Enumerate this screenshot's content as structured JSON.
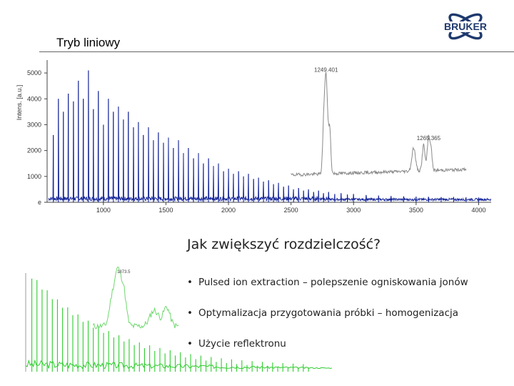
{
  "slide": {
    "title": "Tryb liniowy",
    "question": "Jak zwiększyć rozdzielczość?",
    "bullets": [
      "Pulsed ion extraction – polepszenie ogniskowania jonów",
      "Optymalizacja przygotowania próbki – homogenizacja",
      "Użycie reflektronu"
    ],
    "bullet_symbol": "•"
  },
  "logo": {
    "text": "BRUKER",
    "icon": "atom-orbit-icon",
    "color": "#1f3a6e"
  },
  "chart_data": [
    {
      "type": "line",
      "title": "",
      "xlabel": "",
      "ylabel": "Intens. [a.u.]",
      "xlim": [
        550,
        4100
      ],
      "ylim": [
        0,
        5500
      ],
      "x_ticks": [
        1000,
        1500,
        2000,
        2500,
        3000,
        3500,
        4000
      ],
      "y_ticks": [
        0,
        1000,
        2000,
        3000,
        4000,
        5000
      ],
      "y_tick_labels": [
        "0",
        "1000",
        "2000",
        "3000",
        "4000",
        "5000"
      ],
      "y_first_label": "e",
      "grid": false,
      "series": [
        {
          "color": "#1a2a9c",
          "style": "spectrum",
          "x_range": [
            560,
            4100
          ],
          "peaks": [
            {
              "x": 600,
              "y": 2600
            },
            {
              "x": 640,
              "y": 4000
            },
            {
              "x": 680,
              "y": 3500
            },
            {
              "x": 720,
              "y": 4200
            },
            {
              "x": 760,
              "y": 3900
            },
            {
              "x": 800,
              "y": 4700
            },
            {
              "x": 840,
              "y": 4000
            },
            {
              "x": 880,
              "y": 5100
            },
            {
              "x": 920,
              "y": 3600
            },
            {
              "x": 960,
              "y": 4300
            },
            {
              "x": 1000,
              "y": 3000
            },
            {
              "x": 1040,
              "y": 4000
            },
            {
              "x": 1080,
              "y": 3500
            },
            {
              "x": 1120,
              "y": 3700
            },
            {
              "x": 1160,
              "y": 3200
            },
            {
              "x": 1200,
              "y": 3500
            },
            {
              "x": 1240,
              "y": 2900
            },
            {
              "x": 1280,
              "y": 3100
            },
            {
              "x": 1320,
              "y": 2600
            },
            {
              "x": 1360,
              "y": 2900
            },
            {
              "x": 1400,
              "y": 2400
            },
            {
              "x": 1440,
              "y": 2700
            },
            {
              "x": 1480,
              "y": 2300
            },
            {
              "x": 1520,
              "y": 2500
            },
            {
              "x": 1560,
              "y": 2100
            },
            {
              "x": 1600,
              "y": 2400
            },
            {
              "x": 1640,
              "y": 1900
            },
            {
              "x": 1680,
              "y": 2100
            },
            {
              "x": 1720,
              "y": 1700
            },
            {
              "x": 1760,
              "y": 1900
            },
            {
              "x": 1800,
              "y": 1500
            },
            {
              "x": 1840,
              "y": 1700
            },
            {
              "x": 1880,
              "y": 1400
            },
            {
              "x": 1920,
              "y": 1500
            },
            {
              "x": 1960,
              "y": 1200
            },
            {
              "x": 2000,
              "y": 1300
            },
            {
              "x": 2040,
              "y": 1100
            },
            {
              "x": 2080,
              "y": 1200
            },
            {
              "x": 2120,
              "y": 1000
            },
            {
              "x": 2160,
              "y": 1100
            },
            {
              "x": 2200,
              "y": 900
            },
            {
              "x": 2240,
              "y": 950
            },
            {
              "x": 2280,
              "y": 800
            },
            {
              "x": 2320,
              "y": 850
            },
            {
              "x": 2360,
              "y": 700
            },
            {
              "x": 2400,
              "y": 750
            },
            {
              "x": 2440,
              "y": 600
            },
            {
              "x": 2480,
              "y": 650
            },
            {
              "x": 2520,
              "y": 500
            },
            {
              "x": 2560,
              "y": 550
            },
            {
              "x": 2600,
              "y": 450
            },
            {
              "x": 2640,
              "y": 500
            },
            {
              "x": 2680,
              "y": 400
            },
            {
              "x": 2720,
              "y": 450
            },
            {
              "x": 2760,
              "y": 350
            },
            {
              "x": 2800,
              "y": 400
            },
            {
              "x": 2850,
              "y": 320
            },
            {
              "x": 2900,
              "y": 350
            },
            {
              "x": 2950,
              "y": 300
            },
            {
              "x": 3000,
              "y": 320
            },
            {
              "x": 3100,
              "y": 280
            },
            {
              "x": 3200,
              "y": 260
            },
            {
              "x": 3300,
              "y": 240
            },
            {
              "x": 3400,
              "y": 230
            },
            {
              "x": 3500,
              "y": 220
            },
            {
              "x": 3600,
              "y": 210
            },
            {
              "x": 3700,
              "y": 200
            },
            {
              "x": 3800,
              "y": 190
            },
            {
              "x": 3900,
              "y": 180
            },
            {
              "x": 4000,
              "y": 170
            }
          ]
        },
        {
          "color": "#8a8a8a",
          "style": "zoom-trace",
          "x_range": [
            2500,
            3900
          ],
          "baseline": 1000,
          "peaks": [
            {
              "x": 2780,
              "y": 4800,
              "w": 18
            },
            {
              "x": 2760,
              "y": 2200,
              "w": 12
            },
            {
              "x": 2810,
              "y": 2600,
              "w": 12
            },
            {
              "x": 3480,
              "y": 1900,
              "w": 20
            },
            {
              "x": 3560,
              "y": 2000,
              "w": 15
            },
            {
              "x": 3600,
              "y": 2300,
              "w": 15
            },
            {
              "x": 3620,
              "y": 1700,
              "w": 12
            }
          ]
        }
      ],
      "annotations": [
        {
          "text": "1249.401",
          "x": 2780,
          "y": 5050
        },
        {
          "text": "1265.365",
          "x": 3600,
          "y": 2400
        }
      ]
    },
    {
      "type": "line",
      "title": "",
      "xlabel": "",
      "ylabel": "",
      "grid": false,
      "xlim": [
        0,
        100
      ],
      "ylim": [
        0,
        100
      ],
      "series": [
        {
          "color": "#2ecc2e",
          "style": "spectrum-lower",
          "peaks_count": 55
        },
        {
          "color": "#6fd86f",
          "style": "zoom-trace",
          "baseline": 40,
          "peaks": [
            {
              "x": 30,
              "y": 92,
              "w": 1.5
            },
            {
              "x": 32,
              "y": 70,
              "w": 1.2
            },
            {
              "x": 28,
              "y": 60,
              "w": 1.2
            },
            {
              "x": 42,
              "y": 55,
              "w": 2.0
            },
            {
              "x": 46,
              "y": 58,
              "w": 1.5
            }
          ]
        }
      ],
      "annotations": [
        {
          "text": "1873.5",
          "x": 32,
          "y": 96
        }
      ]
    }
  ]
}
